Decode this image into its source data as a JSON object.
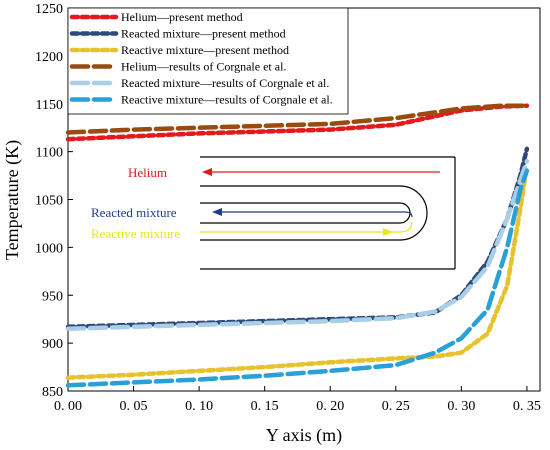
{
  "chart_data": {
    "type": "line",
    "xlabel": "Y axis (m)",
    "ylabel": "Temperature (K)",
    "xlim": [
      0.0,
      0.36
    ],
    "ylim": [
      850,
      1250
    ],
    "x_ticks": [
      "0. 00",
      "0. 05",
      "0. 10",
      "0. 15",
      "0. 20",
      "0. 25",
      "0. 30",
      "0. 35"
    ],
    "x_tick_values": [
      0.0,
      0.05,
      0.1,
      0.15,
      0.2,
      0.25,
      0.3,
      0.35
    ],
    "y_ticks": [
      "850",
      "900",
      "950",
      "1000",
      "1050",
      "1100",
      "1150",
      "1200",
      "1250"
    ],
    "y_tick_values": [
      850,
      900,
      950,
      1000,
      1050,
      1100,
      1150,
      1200,
      1250
    ],
    "legend_position": "top-left",
    "series": [
      {
        "name": "Helium—present method",
        "color": "#e31a1c",
        "style": "dotted",
        "x": [
          0.0,
          0.05,
          0.1,
          0.15,
          0.2,
          0.25,
          0.3,
          0.33,
          0.35
        ],
        "y": [
          1113,
          1116,
          1119,
          1121,
          1123,
          1128,
          1143,
          1147,
          1148
        ]
      },
      {
        "name": "Reacted mixture—present method",
        "color": "#2f4a7a",
        "style": "dotted",
        "x": [
          0.0,
          0.05,
          0.1,
          0.15,
          0.2,
          0.25,
          0.28,
          0.3,
          0.32,
          0.335,
          0.345,
          0.35
        ],
        "y": [
          917,
          919,
          921,
          923,
          925,
          927,
          932,
          950,
          985,
          1030,
          1075,
          1103
        ]
      },
      {
        "name": "Reactive mixture—present method",
        "color": "#e6c22c",
        "style": "dotted",
        "x": [
          0.0,
          0.05,
          0.1,
          0.15,
          0.2,
          0.25,
          0.28,
          0.3,
          0.32,
          0.335,
          0.345,
          0.35
        ],
        "y": [
          864,
          867,
          871,
          875,
          880,
          884,
          886,
          890,
          910,
          960,
          1040,
          1085
        ]
      },
      {
        "name": "Helium—results of Corgnale et al.",
        "color": "#9b4a10",
        "style": "dashed",
        "x": [
          0.0,
          0.05,
          0.1,
          0.15,
          0.2,
          0.25,
          0.3,
          0.33,
          0.35
        ],
        "y": [
          1120,
          1123,
          1125,
          1127,
          1129,
          1135,
          1145,
          1148,
          1148
        ]
      },
      {
        "name": "Reacted mixture—results of Corgnale et al.",
        "color": "#a9cfe8",
        "style": "dashed",
        "x": [
          0.0,
          0.05,
          0.1,
          0.15,
          0.2,
          0.25,
          0.28,
          0.3,
          0.32,
          0.335,
          0.345,
          0.35
        ],
        "y": [
          915,
          917,
          919,
          921,
          923,
          926,
          933,
          948,
          980,
          1030,
          1070,
          1090
        ]
      },
      {
        "name": "Reactive mixture—results of Corgnale et al.",
        "color": "#2aa0d8",
        "style": "dashed",
        "x": [
          0.0,
          0.05,
          0.1,
          0.15,
          0.2,
          0.25,
          0.28,
          0.3,
          0.32,
          0.335,
          0.345,
          0.35
        ],
        "y": [
          856,
          859,
          862,
          866,
          871,
          877,
          890,
          905,
          935,
          1000,
          1060,
          1080
        ]
      }
    ]
  },
  "inset": {
    "helium_label": "Helium",
    "reacted_label": "Reacted mixture",
    "reactive_label": "Reactive mixture",
    "helium_color": "#e31a1c",
    "reacted_color": "#1f3c8a",
    "reactive_color": "#e8e81a"
  }
}
